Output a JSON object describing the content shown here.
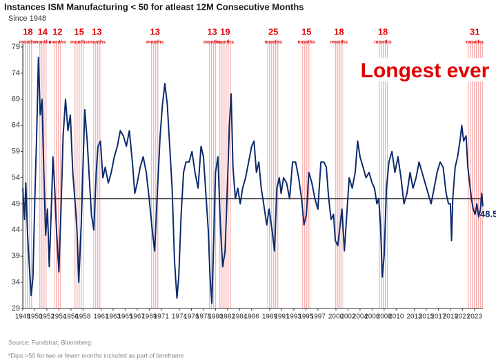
{
  "chart_data": {
    "type": "line",
    "title": "Instances ISM Manufacturing < 50 for atleast 12M Consecutive Months",
    "subtitle": "Since 1948",
    "annotation": "Longest ever",
    "source": "Source: Fundstrat, Bloomberg",
    "footnote": "*Dips >50 for two or fewer months included as part of timeframe",
    "end_label": 48.5,
    "reference_line": 50,
    "xlim": [
      1948,
      2024.4
    ],
    "xticks": [
      1948,
      1950,
      1952,
      1954,
      1956,
      1958,
      1961,
      1963,
      1965,
      1967,
      1969,
      1971,
      1974,
      1976,
      1978,
      1980,
      1982,
      1984,
      1986,
      1989,
      1991,
      1993,
      1995,
      1997,
      2000,
      2002,
      2004,
      2006,
      2008,
      2010,
      2013,
      2015,
      2017,
      2019,
      2021,
      2023
    ],
    "ylim": [
      29,
      79
    ],
    "yticks": [
      29,
      34,
      39,
      44,
      49,
      54,
      59,
      64,
      69,
      74,
      79
    ],
    "periods": [
      {
        "start": 1948.0,
        "end": 1949.7,
        "months": 18,
        "label": "months"
      },
      {
        "start": 1950.6,
        "end": 1952.0,
        "months": 14,
        "label": "months"
      },
      {
        "start": 1953.2,
        "end": 1954.3,
        "months": 12,
        "label": "months"
      },
      {
        "start": 1956.6,
        "end": 1958.1,
        "months": 15,
        "label": "months"
      },
      {
        "start": 1959.7,
        "end": 1960.9,
        "months": 13,
        "label": "months"
      },
      {
        "start": 1969.3,
        "end": 1970.6,
        "months": 13,
        "label": "months"
      },
      {
        "start": 1978.8,
        "end": 1980.1,
        "months": 13,
        "label": "months"
      },
      {
        "start": 1980.6,
        "end": 1982.6,
        "months": 19,
        "label": "months"
      },
      {
        "start": 1988.6,
        "end": 1990.6,
        "months": 25,
        "label": "months"
      },
      {
        "start": 1994.4,
        "end": 1995.8,
        "months": 15,
        "label": "months"
      },
      {
        "start": 1999.7,
        "end": 2001.3,
        "months": 18,
        "label": "months"
      },
      {
        "start": 2007.0,
        "end": 2008.6,
        "months": 18,
        "label": "months"
      },
      {
        "start": 2021.7,
        "end": 2024.4,
        "months": 31,
        "label": "months"
      }
    ],
    "series": [
      {
        "color": "#0d2a6b",
        "x": [
          1948.0,
          1948.3,
          1948.5,
          1948.8,
          1949.2,
          1949.4,
          1949.7,
          1950.0,
          1950.3,
          1950.6,
          1950.9,
          1951.2,
          1951.5,
          1951.8,
          1952.1,
          1952.4,
          1952.8,
          1953.0,
          1953.3,
          1953.6,
          1954.0,
          1954.4,
          1954.7,
          1955.1,
          1955.5,
          1955.9,
          1956.3,
          1956.7,
          1957.0,
          1957.3,
          1957.7,
          1958.0,
          1958.3,
          1958.7,
          1959.0,
          1959.4,
          1959.8,
          1960.2,
          1960.5,
          1960.9,
          1961.3,
          1961.7,
          1962.2,
          1962.7,
          1963.2,
          1963.7,
          1964.2,
          1964.7,
          1965.2,
          1965.7,
          1966.2,
          1966.6,
          1967.0,
          1967.5,
          1968.0,
          1968.5,
          1969.0,
          1969.5,
          1969.9,
          1970.3,
          1970.8,
          1971.2,
          1971.6,
          1972.0,
          1972.4,
          1972.8,
          1973.2,
          1973.6,
          1973.9,
          1974.3,
          1974.7,
          1975.1,
          1975.6,
          1976.1,
          1976.6,
          1977.1,
          1977.6,
          1978.0,
          1978.4,
          1978.8,
          1979.1,
          1979.4,
          1979.7,
          1980.0,
          1980.4,
          1980.8,
          1981.2,
          1981.6,
          1982.0,
          1982.3,
          1982.6,
          1982.9,
          1983.3,
          1983.7,
          1984.1,
          1984.5,
          1985.0,
          1985.5,
          1986.0,
          1986.4,
          1986.8,
          1987.2,
          1987.6,
          1988.0,
          1988.5,
          1988.9,
          1989.4,
          1989.8,
          1990.2,
          1990.6,
          1990.9,
          1991.3,
          1991.8,
          1992.3,
          1992.8,
          1993.3,
          1993.8,
          1994.3,
          1994.7,
          1995.1,
          1995.5,
          1996.0,
          1996.5,
          1997.0,
          1997.5,
          1998.0,
          1998.4,
          1998.8,
          1999.2,
          1999.6,
          1999.9,
          2000.3,
          2000.7,
          2001.0,
          2001.4,
          2001.8,
          2002.2,
          2002.7,
          2003.2,
          2003.6,
          2004.0,
          2004.5,
          2005.0,
          2005.5,
          2006.0,
          2006.4,
          2006.8,
          2007.1,
          2007.4,
          2007.7,
          2008.0,
          2008.4,
          2008.8,
          2009.3,
          2009.8,
          2010.3,
          2010.8,
          2011.3,
          2011.8,
          2012.3,
          2012.8,
          2013.3,
          2013.8,
          2014.3,
          2014.8,
          2015.3,
          2015.8,
          2016.3,
          2016.8,
          2017.3,
          2017.8,
          2018.3,
          2018.7,
          2019.0,
          2019.2,
          2019.4,
          2019.8,
          2020.2,
          2020.6,
          2020.9,
          2021.2,
          2021.6,
          2021.9,
          2022.2,
          2022.5,
          2022.8,
          2023.1,
          2023.4,
          2023.7,
          2024.0,
          2024.2,
          2024.4
        ],
        "values": [
          52,
          46,
          53,
          43,
          35,
          31.5,
          35,
          50,
          62,
          77,
          66,
          69,
          55,
          43,
          48,
          37,
          50,
          58,
          52,
          44,
          36,
          50,
          62,
          69,
          63,
          66,
          55,
          49,
          44,
          34,
          45,
          56,
          67,
          61,
          55,
          47,
          44,
          55,
          60,
          61,
          54,
          56,
          53,
          55,
          58,
          60,
          63,
          62,
          60,
          63,
          57,
          51,
          53,
          56,
          58,
          55,
          50,
          44,
          40,
          50,
          62,
          68,
          72,
          68,
          60,
          52,
          38,
          31,
          35,
          47,
          55,
          57,
          57,
          59,
          55,
          52,
          60,
          58,
          51,
          44,
          35,
          30,
          42,
          55,
          58,
          45,
          37,
          40,
          53,
          64,
          70,
          56,
          50,
          52,
          49,
          52,
          54,
          57,
          60,
          61,
          55,
          57,
          52,
          49,
          45,
          48,
          44,
          40,
          52,
          54,
          51,
          54,
          53,
          50,
          57,
          57,
          54,
          50,
          45,
          47,
          55,
          53,
          50,
          48,
          57,
          57,
          56,
          50,
          46,
          47,
          42,
          41,
          45,
          48,
          40,
          47,
          54,
          52,
          55,
          61,
          58,
          56,
          54,
          55,
          53,
          52,
          49,
          50,
          45,
          35,
          39,
          52,
          57,
          59,
          55,
          58,
          54,
          49,
          51,
          55,
          52,
          54,
          57,
          55,
          53,
          51,
          49,
          52,
          55,
          57,
          56,
          51,
          49,
          49,
          42,
          50,
          56,
          58,
          61,
          64,
          61,
          62,
          56,
          53,
          50,
          48,
          47,
          49,
          46.5,
          48,
          51,
          48.5
        ]
      }
    ]
  }
}
